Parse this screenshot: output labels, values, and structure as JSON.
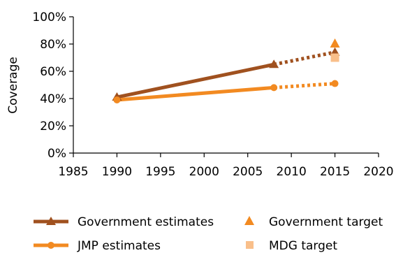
{
  "chart_data": {
    "type": "line",
    "title": "",
    "xlabel": "",
    "ylabel": "Coverage",
    "xlim": [
      1985,
      2020
    ],
    "ylim": [
      0,
      100
    ],
    "x_ticks": [
      "1985",
      "1990",
      "1995",
      "2000",
      "2005",
      "2010",
      "2015",
      "2020"
    ],
    "y_ticks": [
      "0%",
      "20%",
      "40%",
      "60%",
      "80%",
      "100%"
    ],
    "grid": false,
    "legend_position": "bottom",
    "series": [
      {
        "name": "Government estimates",
        "color": "#a0511f",
        "marker": "triangle",
        "points": [
          {
            "x": 1990,
            "y": 41
          },
          {
            "x": 2008,
            "y": 65
          }
        ],
        "projection": [
          {
            "x": 2008,
            "y": 65
          },
          {
            "x": 2015,
            "y": 74
          }
        ]
      },
      {
        "name": "JMP estimates",
        "color": "#f28a21",
        "marker": "circle",
        "points": [
          {
            "x": 1990,
            "y": 39
          },
          {
            "x": 2008,
            "y": 48
          }
        ],
        "projection": [
          {
            "x": 2008,
            "y": 48
          },
          {
            "x": 2015,
            "y": 51
          }
        ]
      }
    ],
    "targets": [
      {
        "name": "Government target",
        "color": "#f28a21",
        "marker": "triangle",
        "x": 2015,
        "y": 80
      },
      {
        "name": "MDG target",
        "color": "#f9bf8a",
        "marker": "square",
        "x": 2015,
        "y": 70
      }
    ]
  }
}
